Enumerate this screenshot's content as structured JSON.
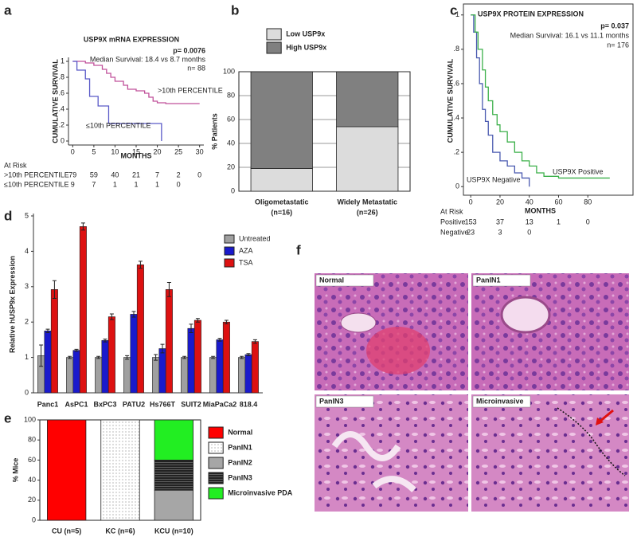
{
  "chart_data": [
    {
      "type": "km",
      "panel": "a",
      "title": "USP9X mRNA EXPRESSION",
      "stats": [
        "p= 0.0076",
        "Median Survival: 18.4 vs 8.7 months",
        "n= 88"
      ],
      "x_label": "MONTHS",
      "y_label": "CUMULATIVE SURVIVAL",
      "xlim": [
        -1,
        31
      ],
      "ylim": [
        -0.05,
        1.05
      ],
      "xticks": [
        0,
        5,
        10,
        15,
        20,
        25,
        30
      ],
      "yticks": [
        0,
        {
          "value": 0.2,
          "label": ".2"
        },
        {
          "value": 0.4,
          "label": ".4"
        },
        {
          "value": 0.6,
          "label": ".6"
        },
        {
          "value": 0.8,
          "label": ".8"
        },
        1
      ],
      "series": [
        {
          "name": ">10th PERCENTILE",
          "color": "#c0509a",
          "x": [
            0,
            3,
            5,
            7,
            8,
            9,
            10,
            12,
            13,
            15,
            17,
            18,
            19,
            20,
            22,
            30
          ],
          "values": [
            1,
            0.98,
            0.95,
            0.9,
            0.85,
            0.8,
            0.75,
            0.7,
            0.65,
            0.63,
            0.6,
            0.55,
            0.5,
            0.48,
            0.47,
            0.47
          ]
        },
        {
          "name": "≤10th PERCENTILE",
          "color": "#5a5ac8",
          "x": [
            0,
            1,
            3,
            4,
            6,
            8.5,
            21
          ],
          "values": [
            1,
            0.89,
            0.78,
            0.56,
            0.44,
            0.22,
            0
          ]
        }
      ],
      "at_risk": {
        "label": "At Risk",
        "rows": [
          {
            "name": ">10th PERCENTILE",
            "counts": [
              79,
              59,
              40,
              21,
              7,
              2,
              0
            ]
          },
          {
            "name": "≤10th PERCENTILE",
            "counts": [
              9,
              7,
              1,
              1,
              1,
              0
            ]
          }
        ]
      }
    },
    {
      "type": "stacked-bar",
      "panel": "b",
      "y_label": "% Patients",
      "categories": [
        [
          "Oligometastatic",
          "(n=16)"
        ],
        [
          "Widely Metastatic",
          "(n=26)"
        ]
      ],
      "ylim": [
        0,
        100
      ],
      "yticks": [
        0,
        20,
        40,
        60,
        80,
        100
      ],
      "grid": true,
      "series": [
        {
          "name": "Low USP9x",
          "color": "#dcdcdc",
          "values": [
            19,
            54
          ]
        },
        {
          "name": "High USP9x",
          "color": "#808080",
          "values": [
            81,
            46
          ]
        }
      ]
    },
    {
      "type": "km",
      "panel": "c",
      "title": "USP9X PROTEIN EXPRESSION",
      "stats": [
        "p= 0.037",
        "Median Survival: 16.1 vs 11.1 months",
        "n= 176"
      ],
      "x_label": "MONTHS",
      "y_label": "CUMULATIVE SURVIVAL",
      "xlim": [
        -5,
        100
      ],
      "ylim": [
        -0.05,
        1.05
      ],
      "xticks": [
        0,
        20,
        40,
        60,
        80
      ],
      "yticks": [
        0,
        {
          "value": 0.2,
          "label": ".2"
        },
        {
          "value": 0.4,
          "label": ".4"
        },
        {
          "value": 0.6,
          "label": ".6"
        },
        {
          "value": 0.8,
          "label": ".8"
        },
        1
      ],
      "series": [
        {
          "name": "USP9X Negative",
          "color": "#4a5ab0",
          "x": [
            0,
            2,
            4,
            6,
            8,
            10,
            12,
            15,
            20,
            25,
            30,
            35,
            40
          ],
          "values": [
            1,
            0.9,
            0.75,
            0.6,
            0.45,
            0.38,
            0.3,
            0.2,
            0.15,
            0.12,
            0.08,
            0.05,
            0
          ]
        },
        {
          "name": "USP9X Positive",
          "color": "#3cb04a",
          "x": [
            0,
            3,
            5,
            8,
            10,
            12,
            15,
            18,
            20,
            25,
            30,
            35,
            40,
            45,
            50,
            60,
            95
          ],
          "values": [
            1,
            0.9,
            0.8,
            0.68,
            0.58,
            0.5,
            0.42,
            0.36,
            0.32,
            0.26,
            0.2,
            0.15,
            0.12,
            0.08,
            0.06,
            0.05,
            0.05
          ]
        }
      ],
      "at_risk": {
        "label": "At Risk",
        "rows": [
          {
            "name": "Positive",
            "counts": [
              153,
              37,
              13,
              1,
              0
            ]
          },
          {
            "name": "Negative",
            "counts": [
              23,
              3,
              0
            ]
          }
        ]
      }
    },
    {
      "type": "grouped-bar",
      "panel": "d",
      "y_label": "Relative hUSP9x Expression",
      "categories": [
        "Panc1",
        "AsPC1",
        "BxPC3",
        "PATU2",
        "Hs766T",
        "SUIT2",
        "MiaPaCa2",
        "818.4"
      ],
      "ylim": [
        0,
        5
      ],
      "yticks": [
        0,
        1,
        2,
        3,
        4,
        5
      ],
      "series": [
        {
          "name": "Untreated",
          "color": "#a0a0a0",
          "values": [
            1.05,
            1.0,
            1.0,
            1.0,
            1.0,
            1.0,
            1.0,
            1.0
          ],
          "errors": [
            0.3,
            0.03,
            0.03,
            0.05,
            0.08,
            0.03,
            0.03,
            0.03
          ]
        },
        {
          "name": "AZA",
          "color": "#1a1acc",
          "values": [
            1.75,
            1.2,
            1.48,
            2.22,
            1.25,
            1.82,
            1.5,
            1.08
          ],
          "errors": [
            0.05,
            0.03,
            0.04,
            0.08,
            0.12,
            0.12,
            0.04,
            0.03
          ]
        },
        {
          "name": "TSA",
          "color": "#dd1111",
          "values": [
            2.92,
            4.7,
            2.15,
            3.62,
            2.92,
            2.05,
            2.0,
            1.45
          ],
          "errors": [
            0.25,
            0.1,
            0.08,
            0.1,
            0.2,
            0.05,
            0.05,
            0.05
          ]
        }
      ]
    },
    {
      "type": "stacked-bar",
      "panel": "e",
      "y_label": "% Mice",
      "categories": [
        "CU (n=5)",
        "KC (n=6)",
        "KCU (n=10)"
      ],
      "ylim": [
        0,
        100
      ],
      "yticks": [
        0,
        20,
        40,
        60,
        80,
        100
      ],
      "grid": false,
      "series": [
        {
          "name": "Normal",
          "color": "#ff0000",
          "values": [
            100,
            0,
            0
          ]
        },
        {
          "name": "PanIN1",
          "color": "#ffffff",
          "pattern": "dots",
          "values": [
            0,
            100,
            0
          ]
        },
        {
          "name": "PanIN2",
          "color": "#a6a6a6",
          "values": [
            0,
            0,
            30
          ]
        },
        {
          "name": "PanIN3",
          "color": "#222222",
          "pattern": "hlines",
          "values": [
            0,
            0,
            30
          ]
        },
        {
          "name": "Microinvasive PDA",
          "color": "#22ee22",
          "values": [
            0,
            0,
            40
          ]
        }
      ]
    }
  ],
  "images": {
    "panel": "f",
    "labels": [
      "Normal",
      "PanIN1",
      "PanIN3",
      "Microinvasive"
    ]
  }
}
